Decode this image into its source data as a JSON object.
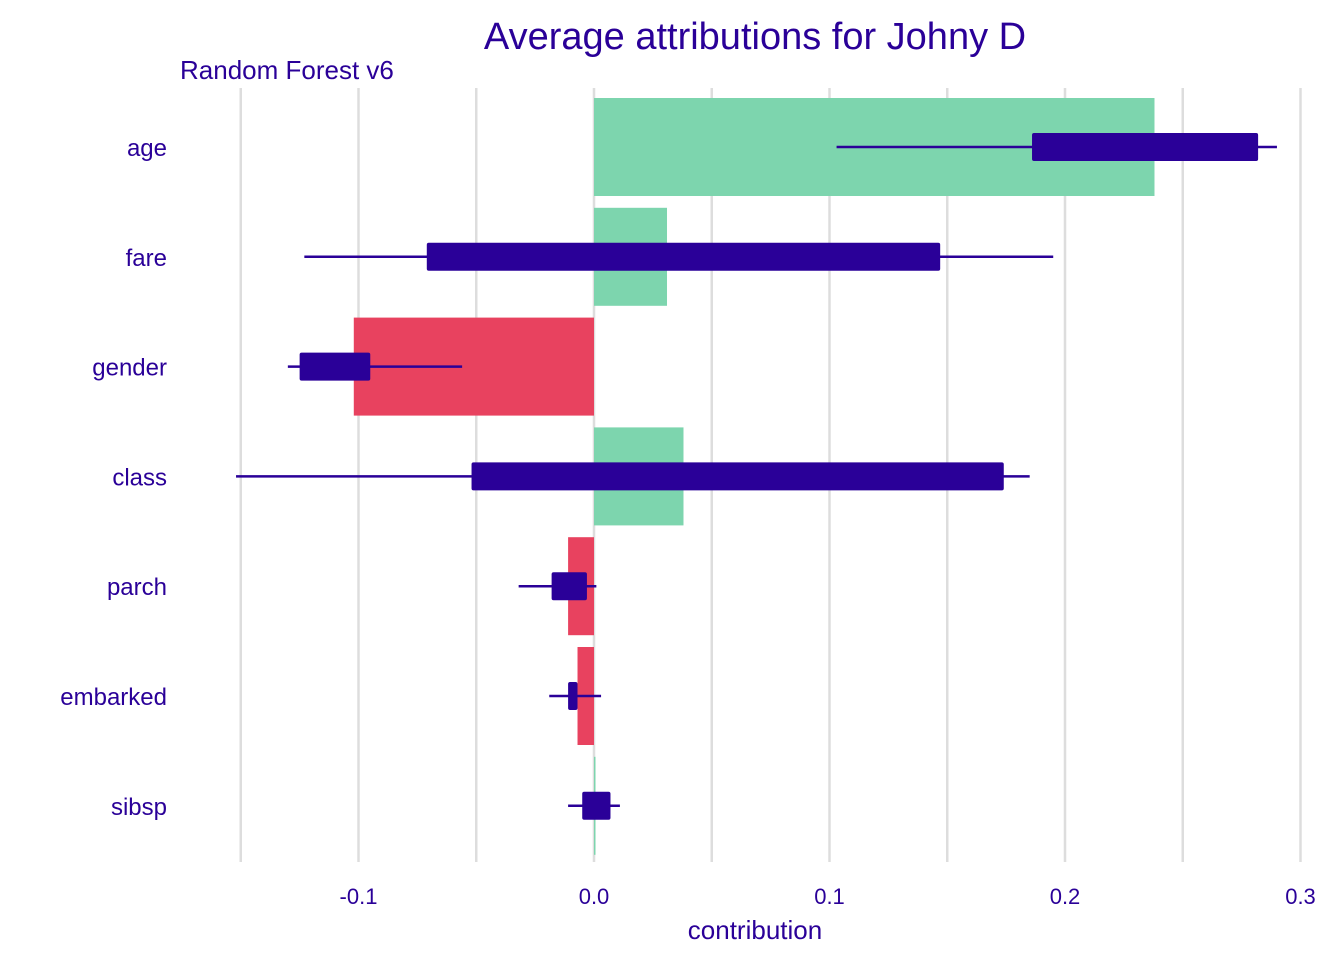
{
  "chart_data": {
    "type": "bar",
    "title": "Average attributions for Johny D",
    "subtitle": "Random Forest v6",
    "xlabel": "contribution",
    "ylabel": "",
    "xlim": [
      -0.15,
      0.3
    ],
    "x_ticks": [
      -0.1,
      0.0,
      0.1,
      0.2,
      0.3
    ],
    "x_tick_labels": [
      "-0.1",
      "0.0",
      "0.1",
      "0.2",
      "0.3"
    ],
    "grid": true,
    "colors": {
      "positive": "#7dd5ae",
      "negative": "#e8425f",
      "boxplot": "#2a0098",
      "text": "#2a0098",
      "grid": "#dddddd"
    },
    "categories": [
      "age",
      "fare",
      "gender",
      "class",
      "parch",
      "embarked",
      "sibsp"
    ],
    "values": [
      0.238,
      0.031,
      -0.102,
      0.038,
      -0.011,
      -0.007,
      0.0005
    ],
    "boxplots": [
      {
        "whisker_min": 0.103,
        "q1": 0.186,
        "q3": 0.282,
        "whisker_max": 0.29
      },
      {
        "whisker_min": -0.123,
        "q1": -0.071,
        "q3": 0.147,
        "whisker_max": 0.195
      },
      {
        "whisker_min": -0.13,
        "q1": -0.125,
        "q3": -0.095,
        "whisker_max": -0.056
      },
      {
        "whisker_min": -0.152,
        "q1": -0.052,
        "q3": 0.174,
        "whisker_max": 0.185
      },
      {
        "whisker_min": -0.032,
        "q1": -0.018,
        "q3": -0.003,
        "whisker_max": 0.001
      },
      {
        "whisker_min": -0.019,
        "q1": -0.011,
        "q3": -0.007,
        "whisker_max": 0.003
      },
      {
        "whisker_min": -0.011,
        "q1": -0.005,
        "q3": 0.007,
        "whisker_max": 0.011
      }
    ]
  }
}
